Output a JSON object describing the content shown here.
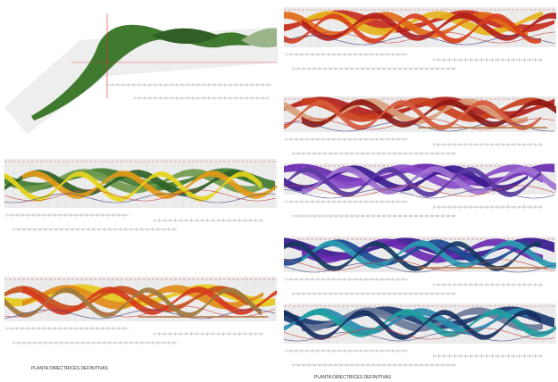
{
  "left_sheet": {
    "caption": "PLANTA DIRECTRICES DEFINITIVAS"
  },
  "right_sheet": {
    "caption": "PLANTA DIRECTRICES DEFINITIVAS"
  }
}
